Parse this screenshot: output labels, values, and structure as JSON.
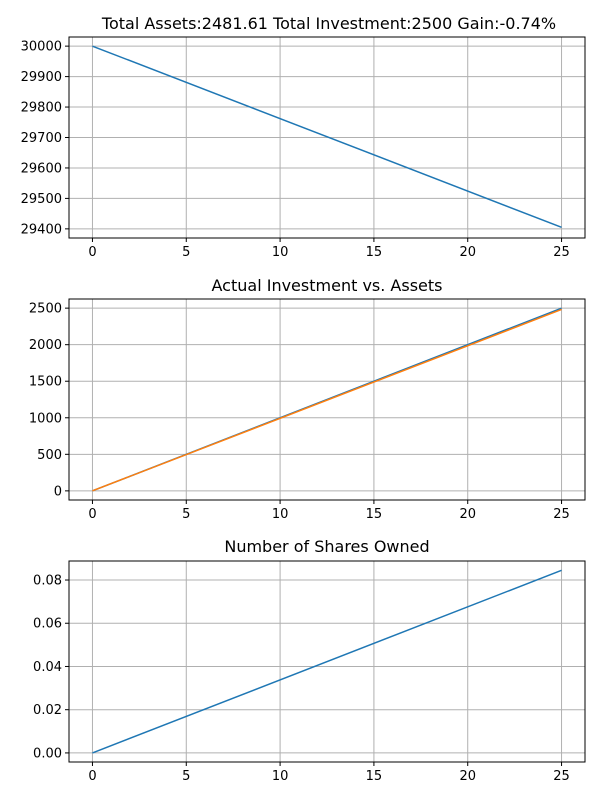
{
  "chart_data": [
    {
      "type": "line",
      "title": "Total Assets:2481.61  Total Investment:2500  Gain:-0.74%",
      "xlabel": "",
      "ylabel": "",
      "xlim": [
        -1.25,
        26.25
      ],
      "ylim": [
        29370,
        30030
      ],
      "xticks": [
        0,
        5,
        10,
        15,
        20,
        25
      ],
      "yticks": [
        29400,
        29500,
        29600,
        29700,
        29800,
        29900,
        30000
      ],
      "grid": true,
      "series": [
        {
          "color": "#1f77b4",
          "x": [
            0,
            25
          ],
          "y": [
            30000,
            29405
          ]
        }
      ]
    },
    {
      "type": "line",
      "title": "Actual Investment vs. Assets",
      "xlabel": "",
      "ylabel": "",
      "xlim": [
        -1.25,
        26.25
      ],
      "ylim": [
        -125,
        2625
      ],
      "xticks": [
        0,
        5,
        10,
        15,
        20,
        25
      ],
      "yticks": [
        0,
        500,
        1000,
        1500,
        2000,
        2500
      ],
      "grid": true,
      "series": [
        {
          "color": "#1f77b4",
          "x": [
            0,
            25
          ],
          "y": [
            0,
            2500
          ]
        },
        {
          "color": "#ff7f0e",
          "x": [
            0,
            25
          ],
          "y": [
            0,
            2481.61
          ]
        }
      ]
    },
    {
      "type": "line",
      "title": "Number of Shares Owned",
      "xlabel": "",
      "ylabel": "",
      "xlim": [
        -1.25,
        26.25
      ],
      "ylim": [
        -0.0042,
        0.0888
      ],
      "xticks": [
        0,
        5,
        10,
        15,
        20,
        25
      ],
      "yticks": [
        0.0,
        0.02,
        0.04,
        0.06,
        0.08
      ],
      "ytick_labels": [
        "0.00",
        "0.02",
        "0.04",
        "0.06",
        "0.08"
      ],
      "grid": true,
      "series": [
        {
          "color": "#1f77b4",
          "x": [
            0,
            25
          ],
          "y": [
            0,
            0.0845
          ]
        }
      ]
    }
  ]
}
